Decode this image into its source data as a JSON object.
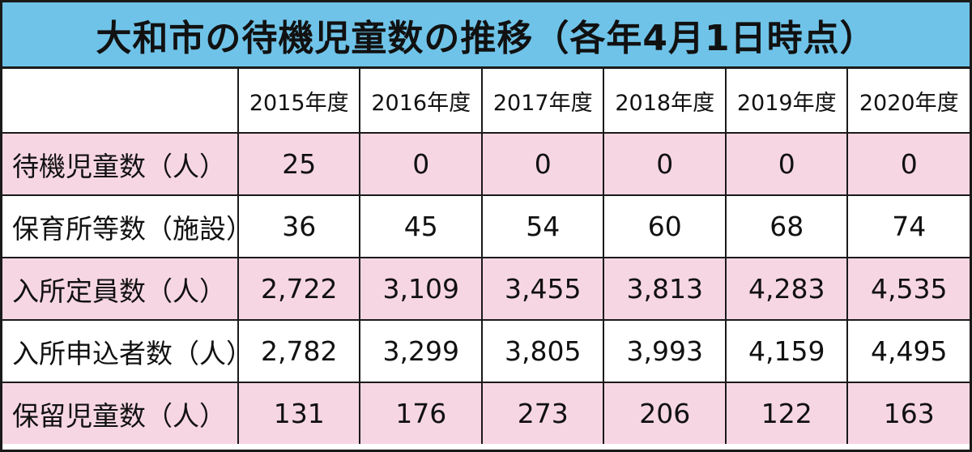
{
  "title": "大和市の待機児童数の推移（各年4月1日時点）",
  "colors": {
    "title_background": "#6fc3e8",
    "row_pink": "#f7d6e3",
    "row_white": "#ffffff",
    "border": "#1a1a1a"
  },
  "table": {
    "columns": [
      "2015年度",
      "2016年度",
      "2017年度",
      "2018年度",
      "2019年度",
      "2020年度"
    ],
    "rows": [
      {
        "label": "待機児童数（人）",
        "values": [
          "25",
          "0",
          "0",
          "0",
          "0",
          "0"
        ]
      },
      {
        "label": "保育所等数（施設）",
        "values": [
          "36",
          "45",
          "54",
          "60",
          "68",
          "74"
        ]
      },
      {
        "label": "入所定員数（人）",
        "values": [
          "2,722",
          "3,109",
          "3,455",
          "3,813",
          "4,283",
          "4,535"
        ]
      },
      {
        "label": "入所申込者数（人）",
        "values": [
          "2,782",
          "3,299",
          "3,805",
          "3,993",
          "4,159",
          "4,495"
        ]
      },
      {
        "label": "保留児童数（人）",
        "values": [
          "131",
          "176",
          "273",
          "206",
          "122",
          "163"
        ]
      }
    ]
  }
}
